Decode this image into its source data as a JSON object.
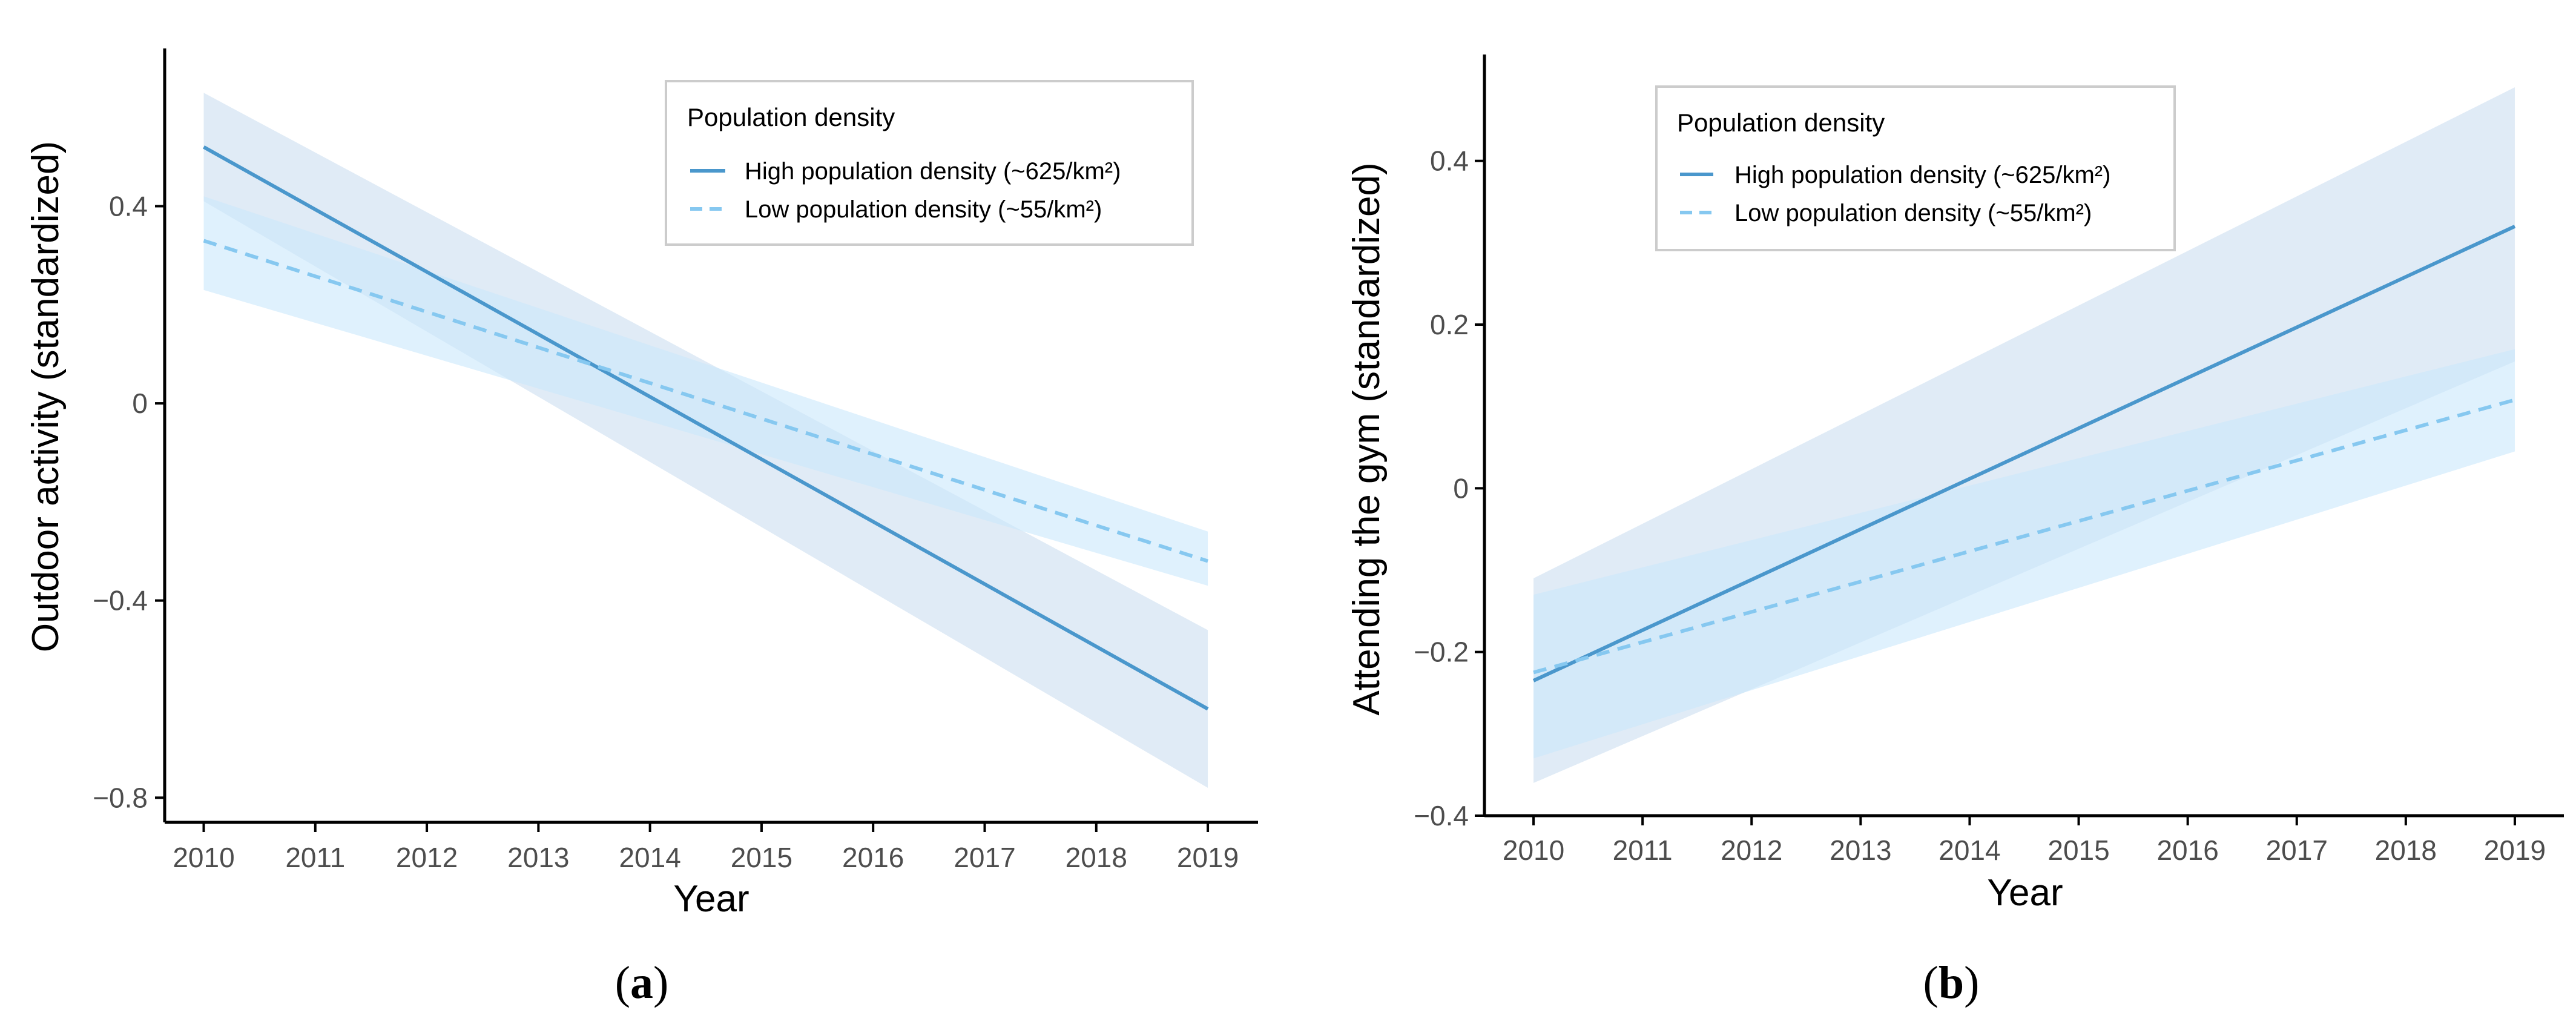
{
  "colors": {
    "high": "#4a97cc",
    "low": "#86c8f0",
    "high_band": "#d6e4f3",
    "low_band": "#c9e7fb",
    "axis": "#000000",
    "tick_text": "#4d4d4d",
    "legend_border": "#cccccc"
  },
  "chart_data": [
    {
      "id": "a",
      "type": "line",
      "panel_label": {
        "open": "(",
        "letter": "a",
        "close": ")"
      },
      "xlabel": "Year",
      "ylabel": "Outdoor activity (standardized)",
      "x": [
        2010,
        2011,
        2012,
        2013,
        2014,
        2015,
        2016,
        2017,
        2018,
        2019
      ],
      "xlim": [
        2009.65,
        2019.45
      ],
      "ylim": [
        -0.85,
        0.72
      ],
      "yticks": [
        0.4,
        0,
        -0.4,
        -0.8
      ],
      "ytick_labels": [
        "0.4",
        "0",
        "−0.4",
        "−0.8"
      ],
      "legend": {
        "title": "Population density",
        "position": "top-right"
      },
      "series": [
        {
          "name": "High population density (~625/km²)",
          "key": "high",
          "style": "solid",
          "x": [
            2010,
            2019
          ],
          "y": [
            0.52,
            -0.62
          ],
          "ci_lower": [
            0.41,
            -0.78
          ],
          "ci_upper": [
            0.63,
            -0.46
          ]
        },
        {
          "name": "Low population density (~55/km²)",
          "key": "low",
          "style": "dashed",
          "x": [
            2010,
            2019
          ],
          "y": [
            0.33,
            -0.32
          ],
          "ci_lower": [
            0.23,
            -0.37
          ],
          "ci_upper": [
            0.42,
            -0.26
          ]
        }
      ]
    },
    {
      "id": "b",
      "type": "line",
      "panel_label": {
        "open": "(",
        "letter": "b",
        "close": ")"
      },
      "xlabel": "Year",
      "ylabel": "Attending the gym (standardized)",
      "x": [
        2010,
        2011,
        2012,
        2013,
        2014,
        2015,
        2016,
        2017,
        2018,
        2019
      ],
      "xlim": [
        2009.55,
        2019.45
      ],
      "ylim": [
        -0.4,
        0.53
      ],
      "yticks": [
        0.4,
        0.2,
        0,
        -0.2,
        -0.4
      ],
      "ytick_labels": [
        "0.4",
        "0.2",
        "0",
        "−0.2",
        "−0.4"
      ],
      "legend": {
        "title": "Population density",
        "position": "top-left"
      },
      "series": [
        {
          "name": "High population density (~625/km²)",
          "key": "high",
          "style": "solid",
          "x": [
            2010,
            2019
          ],
          "y": [
            -0.235,
            0.32
          ],
          "ci_lower": [
            -0.36,
            0.155
          ],
          "ci_upper": [
            -0.11,
            0.49
          ]
        },
        {
          "name": "Low population density (~55/km²)",
          "key": "low",
          "style": "dashed",
          "x": [
            2010,
            2019
          ],
          "y": [
            -0.225,
            0.108
          ],
          "ci_lower": [
            -0.33,
            0.045
          ],
          "ci_upper": [
            -0.13,
            0.17
          ]
        }
      ]
    }
  ]
}
